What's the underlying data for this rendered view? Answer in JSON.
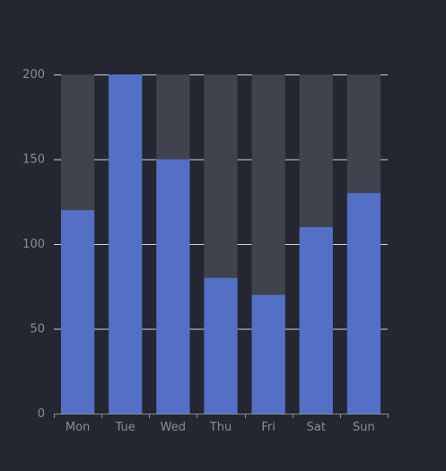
{
  "chart_data": {
    "type": "bar",
    "title": "",
    "xlabel": "",
    "ylabel": "",
    "categories": [
      "Mon",
      "Tue",
      "Wed",
      "Thu",
      "Fri",
      "Sat",
      "Sun"
    ],
    "values": [
      120,
      200,
      150,
      80,
      70,
      110,
      130
    ],
    "background_values": [
      200,
      200,
      200,
      200,
      200,
      200,
      200
    ],
    "ylim": [
      0,
      200
    ],
    "yticks": [
      0,
      50,
      100,
      150,
      200
    ],
    "grid": true,
    "colors": {
      "background": "#242732",
      "bar": "#5470c6",
      "bar_background": "#40434d",
      "grid": "#d0d2d8",
      "axis": "#8a8d96",
      "label": "#8a8d96"
    }
  }
}
